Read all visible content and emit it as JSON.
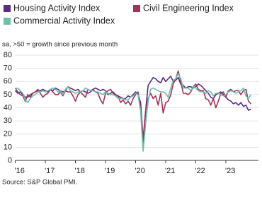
{
  "chart_data": {
    "type": "line",
    "subtitle": "sa, >50 = growth since previous month",
    "source": "Source: S&P Global PMI.",
    "x": [
      0,
      1,
      2,
      3,
      4,
      5,
      6,
      7,
      8,
      9,
      10,
      11,
      12,
      13,
      14,
      15,
      16,
      17,
      18,
      19,
      20,
      21,
      22,
      23,
      24,
      25,
      26,
      27,
      28,
      29,
      30,
      31,
      32,
      33,
      34,
      35,
      36,
      37,
      38,
      39,
      40,
      41,
      42,
      43,
      44,
      45,
      46,
      47,
      48,
      49,
      50,
      51,
      52,
      53,
      54,
      55,
      56,
      57,
      58,
      59,
      60,
      61,
      62,
      63,
      64,
      65,
      66,
      67,
      68,
      69,
      70,
      71,
      72,
      73,
      74,
      75,
      76,
      77,
      78,
      79,
      80,
      81,
      82,
      83,
      84,
      85,
      86,
      87,
      88,
      89,
      90,
      91,
      92,
      93,
      94
    ],
    "xlim": [
      -1,
      97
    ],
    "xticks": [
      {
        "value": 0,
        "label": "'16"
      },
      {
        "value": 12,
        "label": "'17"
      },
      {
        "value": 24,
        "label": "'18"
      },
      {
        "value": 36,
        "label": "'19"
      },
      {
        "value": 48,
        "label": "'20"
      },
      {
        "value": 60,
        "label": "'21"
      },
      {
        "value": 72,
        "label": "'22"
      },
      {
        "value": 84,
        "label": "'23"
      }
    ],
    "ylim": [
      0,
      80
    ],
    "yticks": [
      0,
      10,
      20,
      30,
      40,
      50,
      60,
      70,
      80
    ],
    "grid": true,
    "series": [
      {
        "name": "Housing Activity Index",
        "color": "#5b2a86",
        "values": [
          53,
          51,
          52,
          50,
          48,
          48,
          50,
          51,
          52,
          53,
          53,
          54,
          53,
          52,
          54,
          53,
          55,
          54,
          53,
          52,
          53,
          56,
          55,
          54,
          53,
          54,
          52,
          53,
          52,
          51,
          52,
          54,
          55,
          54,
          53,
          54,
          53,
          50,
          51,
          52,
          50,
          49,
          48,
          47,
          47,
          49,
          48,
          50,
          52,
          50,
          44,
          16,
          38,
          57,
          60,
          63,
          62,
          60,
          59,
          63,
          60,
          62,
          64,
          60,
          61,
          63,
          58,
          57,
          55,
          56,
          56,
          55,
          56,
          58,
          57,
          55,
          53,
          51,
          48,
          47,
          50,
          51,
          52,
          50,
          48,
          46,
          45,
          43,
          44,
          42,
          44,
          41,
          42,
          38,
          39
        ]
      },
      {
        "name": "Civil Engineering Index",
        "color": "#a3325b",
        "values": [
          55,
          52,
          50,
          49,
          45,
          50,
          48,
          51,
          52,
          54,
          51,
          48,
          50,
          51,
          54,
          52,
          50,
          50,
          52,
          49,
          53,
          52,
          52,
          49,
          45,
          50,
          52,
          50,
          48,
          54,
          53,
          54,
          52,
          51,
          46,
          43,
          51,
          53,
          54,
          51,
          49,
          49,
          44,
          46,
          43,
          45,
          42,
          47,
          50,
          52,
          39,
          13,
          38,
          47,
          51,
          47,
          49,
          42,
          51,
          36,
          44,
          45,
          50,
          58,
          62,
          68,
          60,
          51,
          51,
          50,
          52,
          56,
          58,
          54,
          53,
          53,
          47,
          46,
          42,
          47,
          40,
          45,
          51,
          52,
          48,
          53,
          54,
          52,
          53,
          53,
          50,
          53,
          54,
          45,
          43
        ]
      },
      {
        "name": "Commercial Activity Index",
        "color": "#6dbfa8",
        "values": [
          54,
          55,
          53,
          51,
          46,
          44,
          47,
          49,
          50,
          52,
          52,
          53,
          52,
          53,
          54,
          55,
          54,
          52,
          53,
          50,
          54,
          56,
          53,
          52,
          51,
          52,
          52,
          53,
          55,
          54,
          53,
          53,
          52,
          52,
          51,
          50,
          52,
          51,
          50,
          50,
          49,
          47,
          47,
          47,
          46,
          46,
          48,
          49,
          51,
          50,
          37,
          7,
          28,
          45,
          54,
          55,
          54,
          53,
          52,
          52,
          51,
          48,
          55,
          61,
          62,
          66,
          62,
          55,
          55,
          55,
          53,
          56,
          55,
          53,
          52,
          52,
          51,
          53,
          52,
          49,
          51,
          51,
          50,
          49,
          50,
          52,
          53,
          52,
          51,
          52,
          53,
          55,
          49,
          47,
          50
        ]
      }
    ]
  }
}
